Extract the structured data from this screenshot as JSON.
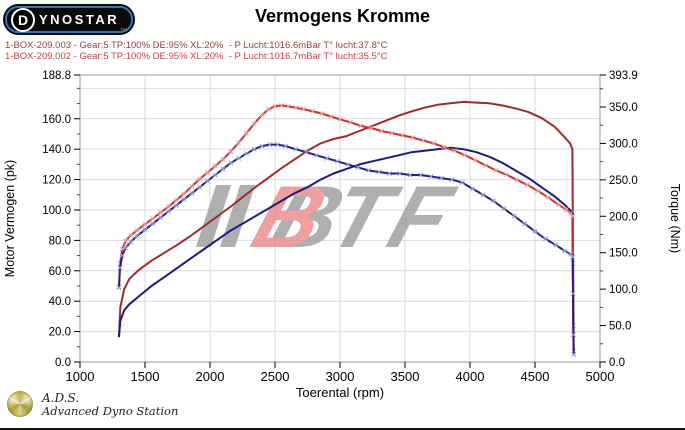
{
  "header": {
    "logo": {
      "d": "D",
      "rest": "YNOSTAR",
      "subtext": "™"
    },
    "title": "Vermogens Kromme"
  },
  "legend": {
    "runs": [
      {
        "label": "1-BOX-209.003 - Gear:5 TP:100% DE:95% XL:20%  - P Lucht:1016.6mBar T° lucht:37.8°C",
        "color": "#8a4545"
      },
      {
        "label": "1-BOX-209.002 - Gear:5 TP:100% DE:95% XL:20%  - P Lucht:1016.7mBar T° lucht:35.5°C",
        "color": "#cc4040"
      }
    ]
  },
  "watermark": {
    "slashes_color": "#9c9c9c",
    "b_letter": "B",
    "b_color": "#ea8888",
    "b_shadow_color": "#9c9c9c",
    "tf_letters": "TF",
    "tf_color": "#9c9c9c",
    "opacity": 0.8
  },
  "footer": {
    "abbr": "A.D.S.",
    "name": "Advanced Dyno Station"
  },
  "chart_data": {
    "type": "line",
    "title": "Vermogens Kromme",
    "xlabel": "Toerental (rpm)",
    "ylabel_left": "Motor Vermogen (pk)",
    "ylabel_right": "Torque (Nm)",
    "xlim": [
      1000,
      5000
    ],
    "ylim_left": [
      0,
      188.8
    ],
    "ylim_right": [
      0,
      393.9
    ],
    "x_ticks": [
      1000,
      1500,
      2000,
      2500,
      3000,
      3500,
      4000,
      4500,
      5000
    ],
    "y_ticks_left": [
      0,
      20,
      40,
      60,
      80,
      100,
      120,
      140,
      160,
      188.8
    ],
    "y_ticks_right": [
      0,
      50,
      100,
      150,
      200,
      250,
      300,
      350,
      393.9
    ],
    "grid": true,
    "grid_color": "#d9d9d9",
    "border_color": "#9a9a9a",
    "legend_position": "top-left",
    "series": [
      {
        "name": "1-BOX-209.003 torque",
        "axis": "right",
        "unit": "Nm",
        "color": "#9e2b2b",
        "markers": false,
        "marker_color": "#c98080",
        "points": [
          [
            1300,
            35
          ],
          [
            1310,
            75
          ],
          [
            1340,
            100
          ],
          [
            1380,
            114
          ],
          [
            1450,
            126
          ],
          [
            1550,
            139
          ],
          [
            1650,
            150
          ],
          [
            1750,
            161
          ],
          [
            1850,
            173
          ],
          [
            1950,
            186
          ],
          [
            2050,
            199
          ],
          [
            2150,
            212
          ],
          [
            2250,
            226
          ],
          [
            2350,
            240
          ],
          [
            2450,
            253
          ],
          [
            2550,
            266
          ],
          [
            2650,
            278
          ],
          [
            2750,
            290
          ],
          [
            2850,
            300
          ],
          [
            2950,
            306
          ],
          [
            3050,
            310
          ],
          [
            3150,
            317
          ],
          [
            3250,
            324
          ],
          [
            3350,
            331
          ],
          [
            3450,
            338
          ],
          [
            3550,
            344
          ],
          [
            3650,
            349
          ],
          [
            3750,
            353
          ],
          [
            3850,
            355
          ],
          [
            3950,
            357
          ],
          [
            4050,
            356
          ],
          [
            4150,
            355
          ],
          [
            4250,
            352
          ],
          [
            4350,
            348
          ],
          [
            4450,
            343
          ],
          [
            4550,
            335
          ],
          [
            4650,
            323
          ],
          [
            4720,
            310
          ],
          [
            4770,
            300
          ],
          [
            4788,
            292
          ],
          [
            4791,
            200
          ],
          [
            4794,
            80
          ],
          [
            4797,
            15
          ]
        ]
      },
      {
        "name": "1-BOX-209.003 power",
        "axis": "left",
        "unit": "pk",
        "color": "#1c1c7c",
        "markers": false,
        "marker_color": "#8888c0",
        "points": [
          [
            1300,
            17
          ],
          [
            1310,
            27
          ],
          [
            1340,
            34
          ],
          [
            1380,
            38
          ],
          [
            1450,
            43
          ],
          [
            1550,
            50
          ],
          [
            1650,
            56
          ],
          [
            1750,
            62
          ],
          [
            1850,
            68
          ],
          [
            1950,
            74
          ],
          [
            2050,
            80
          ],
          [
            2150,
            86
          ],
          [
            2250,
            91
          ],
          [
            2350,
            96
          ],
          [
            2450,
            101
          ],
          [
            2550,
            106
          ],
          [
            2650,
            111
          ],
          [
            2750,
            115
          ],
          [
            2850,
            120
          ],
          [
            2950,
            124
          ],
          [
            3050,
            127
          ],
          [
            3150,
            130
          ],
          [
            3250,
            132
          ],
          [
            3350,
            134
          ],
          [
            3450,
            136
          ],
          [
            3550,
            138
          ],
          [
            3650,
            139
          ],
          [
            3750,
            140
          ],
          [
            3850,
            141
          ],
          [
            3950,
            140
          ],
          [
            4050,
            138
          ],
          [
            4150,
            135
          ],
          [
            4250,
            131
          ],
          [
            4350,
            126
          ],
          [
            4450,
            121
          ],
          [
            4550,
            115
          ],
          [
            4650,
            109
          ],
          [
            4720,
            104
          ],
          [
            4770,
            100
          ],
          [
            4788,
            97
          ],
          [
            4791,
            60
          ],
          [
            4794,
            25
          ],
          [
            4797,
            8
          ]
        ]
      },
      {
        "name": "1-BOX-209.002 torque",
        "axis": "right",
        "unit": "Nm",
        "color": "#c13434",
        "markers": true,
        "marker_color": "#efa0a0",
        "points": [
          [
            1300,
            103
          ],
          [
            1308,
            135
          ],
          [
            1325,
            155
          ],
          [
            1350,
            166
          ],
          [
            1390,
            174
          ],
          [
            1440,
            181
          ],
          [
            1500,
            189
          ],
          [
            1560,
            197
          ],
          [
            1620,
            205
          ],
          [
            1680,
            213
          ],
          [
            1740,
            222
          ],
          [
            1800,
            231
          ],
          [
            1860,
            241
          ],
          [
            1920,
            251
          ],
          [
            1980,
            260
          ],
          [
            2040,
            269
          ],
          [
            2100,
            278
          ],
          [
            2160,
            289
          ],
          [
            2220,
            301
          ],
          [
            2280,
            314
          ],
          [
            2340,
            327
          ],
          [
            2400,
            339
          ],
          [
            2450,
            347
          ],
          [
            2500,
            351
          ],
          [
            2550,
            352
          ],
          [
            2600,
            351
          ],
          [
            2660,
            349
          ],
          [
            2720,
            347
          ],
          [
            2790,
            344
          ],
          [
            2860,
            341
          ],
          [
            2930,
            337
          ],
          [
            3000,
            333
          ],
          [
            3080,
            329
          ],
          [
            3160,
            324
          ],
          [
            3240,
            321
          ],
          [
            3320,
            317
          ],
          [
            3400,
            314
          ],
          [
            3480,
            311
          ],
          [
            3560,
            308
          ],
          [
            3640,
            304
          ],
          [
            3720,
            300
          ],
          [
            3800,
            295
          ],
          [
            3880,
            290
          ],
          [
            3960,
            284
          ],
          [
            4040,
            277
          ],
          [
            4120,
            270
          ],
          [
            4200,
            263
          ],
          [
            4280,
            257
          ],
          [
            4360,
            250
          ],
          [
            4440,
            243
          ],
          [
            4520,
            235
          ],
          [
            4600,
            226
          ],
          [
            4680,
            216
          ],
          [
            4740,
            209
          ],
          [
            4775,
            204
          ],
          [
            4790,
            200
          ],
          [
            4793,
            135
          ],
          [
            4796,
            50
          ],
          [
            4798,
            15
          ]
        ]
      },
      {
        "name": "1-BOX-209.002 power",
        "axis": "left",
        "unit": "pk",
        "color": "#23237f",
        "markers": true,
        "marker_color": "#98a0d0",
        "points": [
          [
            1300,
            49
          ],
          [
            1308,
            62
          ],
          [
            1325,
            70
          ],
          [
            1350,
            75
          ],
          [
            1390,
            79
          ],
          [
            1440,
            83
          ],
          [
            1500,
            87
          ],
          [
            1560,
            91
          ],
          [
            1620,
            95
          ],
          [
            1680,
            99
          ],
          [
            1740,
            103
          ],
          [
            1800,
            107
          ],
          [
            1860,
            111
          ],
          [
            1920,
            115
          ],
          [
            1980,
            119
          ],
          [
            2040,
            123
          ],
          [
            2100,
            127
          ],
          [
            2160,
            131
          ],
          [
            2220,
            134
          ],
          [
            2280,
            137
          ],
          [
            2340,
            140
          ],
          [
            2400,
            142
          ],
          [
            2460,
            143
          ],
          [
            2520,
            143
          ],
          [
            2580,
            142
          ],
          [
            2660,
            140
          ],
          [
            2740,
            138
          ],
          [
            2820,
            136
          ],
          [
            2900,
            134
          ],
          [
            2980,
            132
          ],
          [
            3060,
            130
          ],
          [
            3140,
            128
          ],
          [
            3220,
            126
          ],
          [
            3300,
            125
          ],
          [
            3380,
            124
          ],
          [
            3460,
            124
          ],
          [
            3540,
            123
          ],
          [
            3620,
            123
          ],
          [
            3700,
            122
          ],
          [
            3780,
            121
          ],
          [
            3860,
            120
          ],
          [
            3940,
            118
          ],
          [
            4020,
            114
          ],
          [
            4100,
            110
          ],
          [
            4180,
            106
          ],
          [
            4260,
            101
          ],
          [
            4340,
            96
          ],
          [
            4420,
            91
          ],
          [
            4500,
            86
          ],
          [
            4580,
            81
          ],
          [
            4660,
            77
          ],
          [
            4730,
            73
          ],
          [
            4775,
            71
          ],
          [
            4790,
            69
          ],
          [
            4793,
            45
          ],
          [
            4796,
            18
          ],
          [
            4798,
            5
          ]
        ]
      }
    ]
  }
}
